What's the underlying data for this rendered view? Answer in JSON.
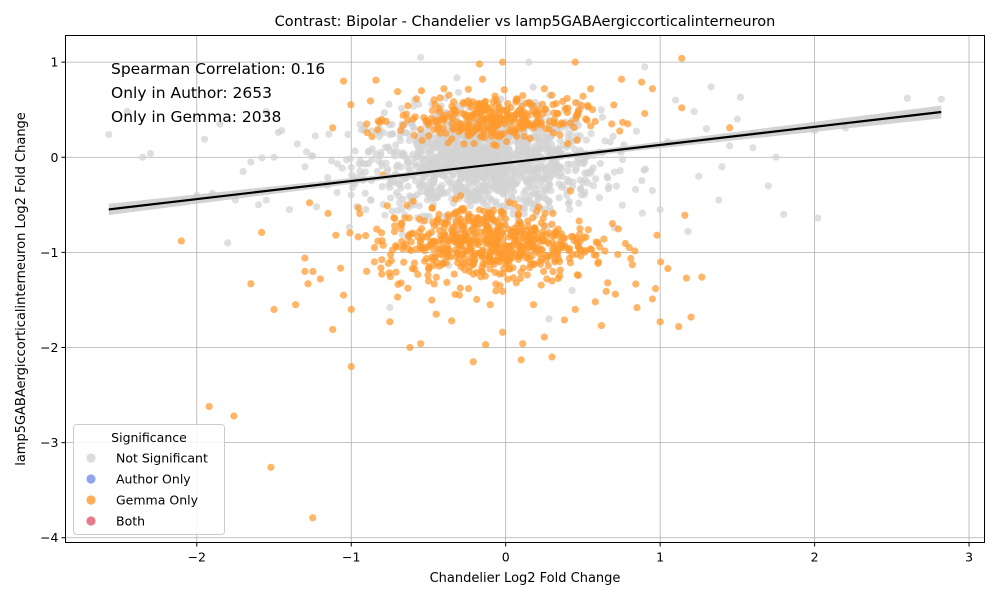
{
  "chart_data": {
    "type": "scatter",
    "title": "Contrast: Bipolar - Chandelier vs lamp5GABAergiccorticalinterneuron",
    "xlabel": "Chandelier Log2 Fold Change",
    "ylabel": "lamp5GABAergiccorticalinterneuron Log2 Fold Change",
    "xlim": [
      -2.85,
      3.1
    ],
    "ylim": [
      -4.05,
      1.28
    ],
    "xticks": [
      -2,
      -1,
      0,
      1,
      2,
      3
    ],
    "yticks": [
      1,
      0,
      -1,
      -2,
      -3,
      -4
    ],
    "xtick_labels": [
      "−2",
      "−1",
      "0",
      "1",
      "2",
      "3"
    ],
    "ytick_labels": [
      "1",
      "0",
      "−1",
      "−2",
      "−3",
      "−4"
    ],
    "grid": true,
    "annotations": [
      "Spearman Correlation: 0.16",
      "Only in Author: 2653",
      "Only in Gemma: 2038"
    ],
    "regression": {
      "slope": 0.19,
      "intercept": -0.06,
      "x_range": [
        -2.57,
        2.82
      ]
    },
    "legend": {
      "title": "Significance",
      "position": "lower-left",
      "entries": [
        {
          "label": "Not Significant",
          "color": "#d3d3d3"
        },
        {
          "label": "Author Only",
          "color": "#6f8fe6"
        },
        {
          "label": "Gemma Only",
          "color": "#ff9a2e"
        },
        {
          "label": "Both",
          "color": "#e0596e"
        }
      ]
    },
    "series": [
      {
        "name": "Gemma Only",
        "color": "#ff9a2e",
        "points": [
          [
            -2.1,
            -0.88
          ],
          [
            -1.92,
            -2.62
          ],
          [
            -1.76,
            -2.72
          ],
          [
            -1.65,
            -1.33
          ],
          [
            -1.58,
            -0.79
          ],
          [
            -1.52,
            -3.26
          ],
          [
            -1.5,
            -1.6
          ],
          [
            -1.36,
            -1.55
          ],
          [
            -1.25,
            -3.79
          ],
          [
            -1.0,
            -2.2
          ],
          [
            1.14,
            1.04
          ],
          [
            1.45,
            0.31
          ],
          [
            -0.02,
            1.0
          ],
          [
            -0.17,
            0.98
          ],
          [
            0.45,
            1.0
          ],
          [
            -1.05,
            0.8
          ],
          [
            -0.84,
            0.81
          ],
          [
            0.3,
            -2.1
          ],
          [
            0.1,
            -2.13
          ],
          [
            -0.21,
            -2.15
          ],
          [
            -0.62,
            -2.0
          ],
          [
            1.0,
            -1.73
          ],
          [
            1.2,
            -1.68
          ],
          [
            1.12,
            -1.78
          ],
          [
            0.62,
            -1.77
          ],
          [
            1.17,
            -1.27
          ],
          [
            1.27,
            -1.26
          ],
          [
            1.05,
            -1.17
          ],
          [
            0.97,
            -1.38
          ],
          [
            0.95,
            -1.49
          ],
          [
            -1.12,
            -1.81
          ],
          [
            -1.0,
            -1.6
          ],
          [
            -0.75,
            -1.73
          ],
          [
            -0.55,
            -1.96
          ],
          [
            -0.02,
            -1.84
          ],
          [
            0.25,
            -1.89
          ],
          [
            0.11,
            -1.96
          ],
          [
            -0.13,
            -1.97
          ],
          [
            0.85,
            -1.58
          ],
          [
            -1.2,
            -1.28
          ],
          [
            -1.28,
            -1.33
          ],
          [
            -1.3,
            -1.06
          ],
          [
            -1.3,
            -1.2
          ],
          [
            1.16,
            -0.61
          ],
          [
            0.98,
            -0.82
          ],
          [
            -1.15,
            -0.59
          ],
          [
            -1.1,
            -0.82
          ],
          [
            0.88,
            0.79
          ],
          [
            0.95,
            0.72
          ],
          [
            0.75,
            0.82
          ],
          [
            -0.7,
            0.69
          ],
          [
            -0.4,
            0.72
          ],
          [
            0.25,
            0.72
          ],
          [
            0.55,
            0.72
          ],
          [
            -0.15,
            0.82
          ],
          [
            0.7,
            0.55
          ],
          [
            0.9,
            0.46
          ],
          [
            -0.9,
            0.35
          ],
          [
            -1.12,
            0.31
          ],
          [
            1.14,
            0.52
          ],
          [
            0.6,
            -1.1
          ],
          [
            0.82,
            -1.13
          ],
          [
            -0.85,
            -1.1
          ],
          [
            -0.9,
            -1.2
          ],
          [
            -0.35,
            -1.72
          ],
          [
            0.38,
            -1.71
          ],
          [
            0.18,
            -1.55
          ],
          [
            -0.1,
            -1.55
          ],
          [
            0.71,
            -1.44
          ],
          [
            -0.7,
            -1.47
          ],
          [
            -1.05,
            -1.45
          ],
          [
            -0.3,
            -1.45
          ],
          [
            0.45,
            -1.6
          ],
          [
            0.58,
            -1.52
          ],
          [
            -0.45,
            -1.65
          ],
          [
            0.3,
            -1.3
          ],
          [
            -0.5,
            -1.3
          ],
          [
            0.66,
            -1.32
          ],
          [
            0.8,
            -0.95
          ],
          [
            -0.85,
            -0.95
          ]
        ]
      },
      {
        "name": "Not Significant",
        "color": "#d3d3d3",
        "points": [
          [
            -2.57,
            0.24
          ],
          [
            -2.45,
            0.48
          ],
          [
            -2.35,
            0.0
          ],
          [
            -2.3,
            0.04
          ],
          [
            -1.95,
            0.19
          ],
          [
            -1.9,
            -0.38
          ],
          [
            -1.85,
            0.35
          ],
          [
            -1.8,
            -0.9
          ],
          [
            -1.75,
            -0.45
          ],
          [
            -1.7,
            -0.15
          ],
          [
            -1.6,
            -0.5
          ],
          [
            -1.55,
            -0.45
          ],
          [
            -1.5,
            0.0
          ],
          [
            -1.45,
            0.28
          ],
          [
            -1.4,
            -0.55
          ],
          [
            -1.35,
            0.14
          ],
          [
            -1.3,
            -0.1
          ],
          [
            2.82,
            0.61
          ],
          [
            2.6,
            0.62
          ],
          [
            2.2,
            0.31
          ],
          [
            2.02,
            -0.64
          ],
          [
            1.8,
            -0.6
          ],
          [
            1.75,
            0.0
          ],
          [
            1.6,
            0.1
          ],
          [
            1.52,
            0.63
          ],
          [
            1.5,
            0.4
          ],
          [
            1.38,
            -0.45
          ],
          [
            1.33,
            0.74
          ],
          [
            1.3,
            0.3
          ],
          [
            1.25,
            -0.2
          ],
          [
            1.18,
            -0.78
          ],
          [
            1.1,
            0.6
          ],
          [
            1.0,
            -0.55
          ],
          [
            0.9,
            0.95
          ],
          [
            0.28,
            -1.7
          ],
          [
            0.43,
            -1.4
          ],
          [
            -0.75,
            -1.58
          ],
          [
            -0.4,
            -1.1
          ],
          [
            0.15,
            1.0
          ],
          [
            -0.55,
            1.05
          ],
          [
            -1.55,
            0.48
          ],
          [
            -1.65,
            -0.05
          ],
          [
            -2.0,
            -0.4
          ],
          [
            2.0,
            0.28
          ],
          [
            1.45,
            0.12
          ],
          [
            1.7,
            -0.3
          ],
          [
            1.6,
            0.25
          ],
          [
            1.4,
            -0.1
          ],
          [
            1.22,
            0.48
          ],
          [
            0.95,
            -0.35
          ]
        ]
      }
    ],
    "dense_clusters": [
      {
        "series": "Not Significant",
        "center": [
          -0.15,
          -0.05
        ],
        "spread": [
          0.38,
          0.27
        ],
        "count": 1300
      },
      {
        "series": "Gemma Only",
        "center": [
          -0.1,
          0.4
        ],
        "spread": [
          0.3,
          0.12
        ],
        "count": 320
      },
      {
        "series": "Gemma Only",
        "center": [
          -0.12,
          -0.9
        ],
        "spread": [
          0.34,
          0.2
        ],
        "count": 600
      }
    ]
  }
}
